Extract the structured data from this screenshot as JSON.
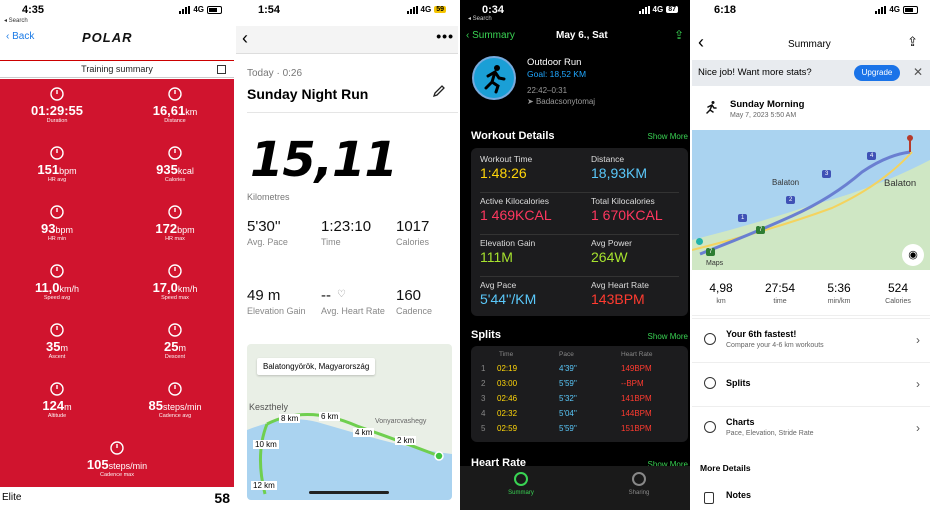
{
  "polar": {
    "status_time": "4:35",
    "status_net": "4G",
    "search": "◂ Search",
    "back": "Back",
    "logo": "POLAR",
    "summary_title": "Training summary",
    "metrics": [
      {
        "value": "01:29:55",
        "unit": "",
        "label": "Duration",
        "icon": "stopwatch-icon"
      },
      {
        "value": "16,61",
        "unit": "km",
        "label": "Distance",
        "icon": "distance-icon"
      },
      {
        "value": "151",
        "unit": "bpm",
        "label": "HR avg",
        "icon": "heart-avg-icon"
      },
      {
        "value": "935",
        "unit": "kcal",
        "label": "Calories",
        "icon": "flame-icon"
      },
      {
        "value": "93",
        "unit": "bpm",
        "label": "HR min",
        "icon": "heart-min-icon"
      },
      {
        "value": "172",
        "unit": "bpm",
        "label": "HR max",
        "icon": "heart-max-icon"
      },
      {
        "value": "11,0",
        "unit": "km/h",
        "label": "Speed avg",
        "icon": "speed-avg-icon"
      },
      {
        "value": "17,0",
        "unit": "km/h",
        "label": "Speed max",
        "icon": "speed-max-icon"
      },
      {
        "value": "35",
        "unit": "m",
        "label": "Ascent",
        "icon": "ascent-icon"
      },
      {
        "value": "25",
        "unit": "m",
        "label": "Descent",
        "icon": "descent-icon"
      },
      {
        "value": "124",
        "unit": "m",
        "label": "Altitude",
        "icon": "altitude-icon"
      },
      {
        "value": "85",
        "unit": "steps/min",
        "label": "Cadence avg",
        "icon": "cadence-avg-icon"
      },
      {
        "value": "105",
        "unit": "steps/min",
        "label": "Cadence max",
        "icon": "cadence-max-icon"
      }
    ],
    "footer_left": "Elite",
    "footer_right": "58"
  },
  "strava": {
    "status_time": "1:54",
    "status_net": "4G",
    "battery": "59",
    "date": "Today · 0:26",
    "title": "Sunday Night Run",
    "distance": "15,11",
    "distance_unit": "Kilometres",
    "stats": [
      {
        "value": "5'30''",
        "label": "Avg. Pace"
      },
      {
        "value": "1:23:10",
        "label": "Time"
      },
      {
        "value": "1017",
        "label": "Calories"
      },
      {
        "value": "49 m",
        "label": "Elevation Gain"
      },
      {
        "value": "--",
        "label": "Avg. Heart Rate"
      },
      {
        "value": "160",
        "label": "Cadence"
      }
    ],
    "map_location": "Balatongyörök, Magyarország",
    "map_labels": [
      "Keszthely",
      "8 km",
      "6 km",
      "4 km",
      "2 km",
      "10 km",
      "12 km",
      "Vonyarcvashegy"
    ]
  },
  "apple": {
    "status_time": "0:34",
    "status_net": "4G",
    "battery": "87",
    "search": "◂ Search",
    "back": "Summary",
    "date": "May 6., Sat",
    "activity": "Outdoor Run",
    "goal": "Goal: 18,52 KM",
    "time_range": "22:42–0:31",
    "location": "Badacsonytomaj",
    "workout_details_title": "Workout Details",
    "show_more": "Show More",
    "details": [
      {
        "label": "Workout Time",
        "value": "1:48:26",
        "color": "#ffd60a"
      },
      {
        "label": "Distance",
        "value": "18,93KM",
        "color": "#5ac8fa"
      },
      {
        "label": "Active Kilocalories",
        "value": "1 469KCAL",
        "color": "#ff375f"
      },
      {
        "label": "Total Kilocalories",
        "value": "1 670KCAL",
        "color": "#ff375f"
      },
      {
        "label": "Elevation Gain",
        "value": "111M",
        "color": "#a6e22e"
      },
      {
        "label": "Avg Power",
        "value": "264W",
        "color": "#a6e22e"
      },
      {
        "label": "Avg Pace",
        "value": "5'44''/KM",
        "color": "#5ac8fa"
      },
      {
        "label": "Avg Heart Rate",
        "value": "143BPM",
        "color": "#ff3b30"
      }
    ],
    "splits_title": "Splits",
    "splits_header": {
      "time": "Time",
      "pace": "Pace",
      "hr": "Heart Rate"
    },
    "splits": [
      {
        "n": "1",
        "time": "02:19",
        "pace": "4'39''",
        "hr": "149BPM"
      },
      {
        "n": "2",
        "time": "03:00",
        "pace": "5'59''",
        "hr": "--BPM"
      },
      {
        "n": "3",
        "time": "02:46",
        "pace": "5'32''",
        "hr": "141BPM"
      },
      {
        "n": "4",
        "time": "02:32",
        "pace": "5'04''",
        "hr": "144BPM"
      },
      {
        "n": "5",
        "time": "02:59",
        "pace": "5'59''",
        "hr": "151BPM"
      }
    ],
    "heart_rate_title": "Heart Rate",
    "tabs": [
      "Summary",
      "Sharing"
    ]
  },
  "fitbit": {
    "status_time": "6:18",
    "status_net": "4G",
    "nav_title": "Summary",
    "banner": "Nice job! Want more stats?",
    "upgrade": "Upgrade",
    "activity": "Sunday Morning",
    "datetime": "May 7, 2023 5:50 AM",
    "map_labels": [
      "Balaton",
      "Balaton"
    ],
    "maps_credit": "Maps",
    "markers": [
      "4",
      "3",
      "2",
      "1",
      "7",
      "7"
    ],
    "stats": [
      {
        "value": "4,98",
        "label": "km"
      },
      {
        "value": "27:54",
        "label": "time"
      },
      {
        "value": "5:36",
        "label": "min/km"
      },
      {
        "value": "524",
        "label": "Calories"
      }
    ],
    "rows": [
      {
        "title": "Your 6th fastest!",
        "sub": "Compare your 4-6 km workouts"
      },
      {
        "title": "Splits",
        "sub": ""
      },
      {
        "title": "Charts",
        "sub": "Pace, Elevation, Stride Rate"
      }
    ],
    "more_details": "More Details",
    "notes": "Notes"
  }
}
